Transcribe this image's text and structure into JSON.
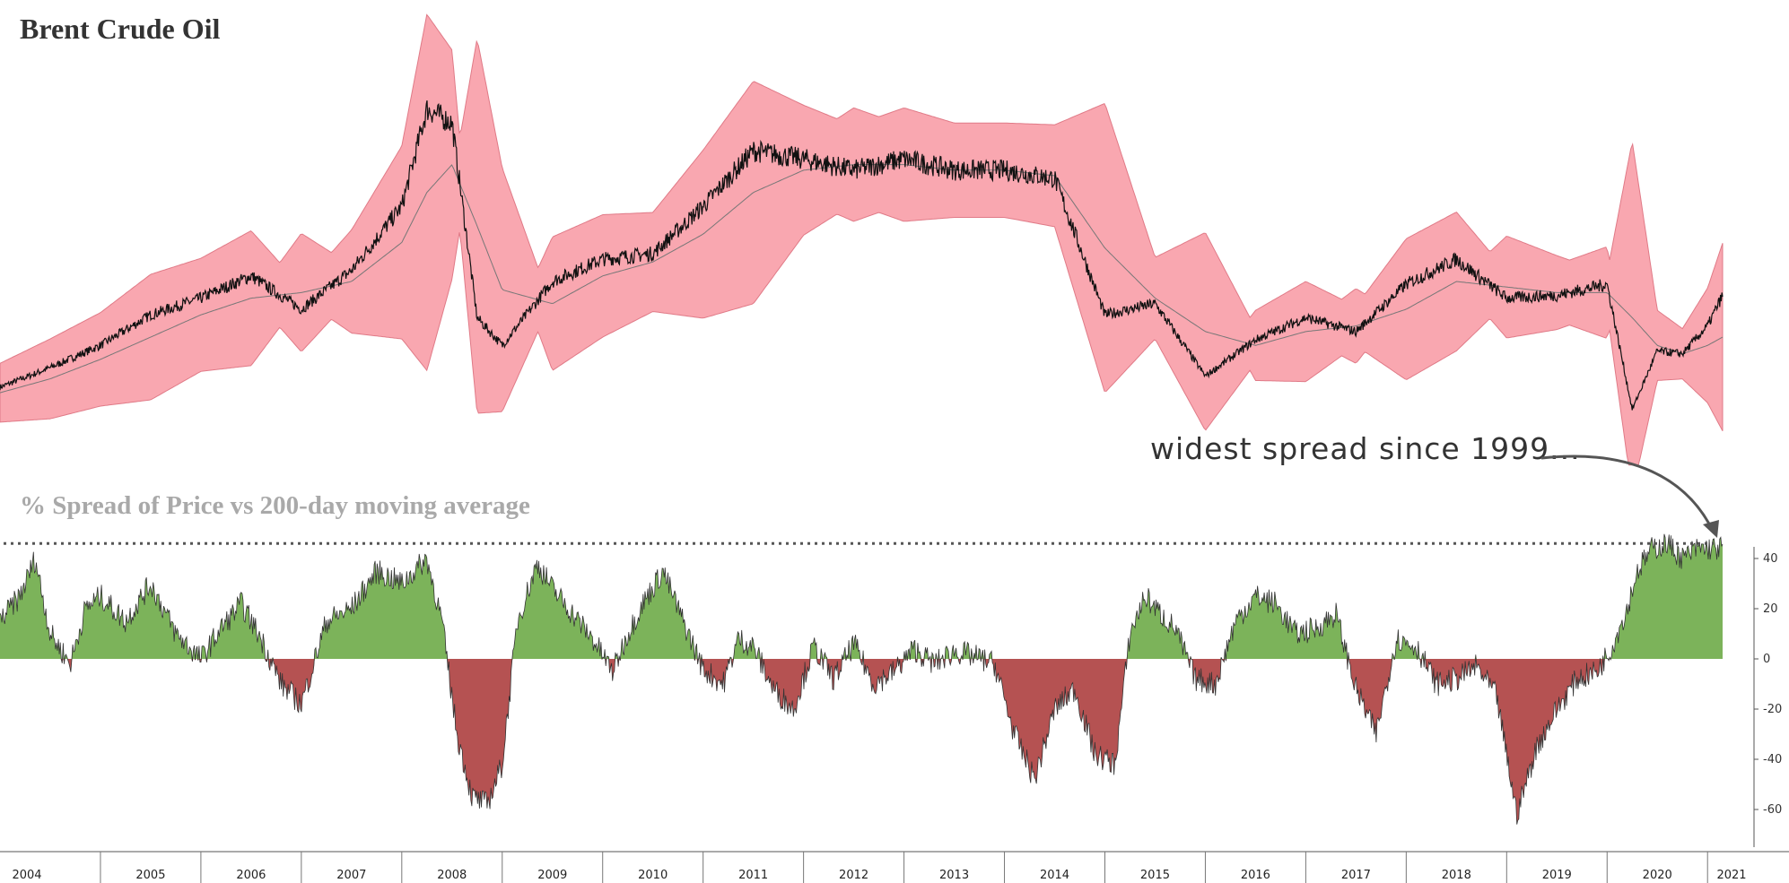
{
  "chart_data": [
    {
      "type": "line",
      "title": "Brent Crude Oil",
      "description_series": [
        "price",
        "200-day moving average",
        "band"
      ],
      "x": [
        2004.0,
        2004.5,
        2005.0,
        2005.5,
        2006.0,
        2006.5,
        2007.0,
        2007.5,
        2008.0,
        2008.25,
        2008.5,
        2008.75,
        2009.0,
        2009.5,
        2010.0,
        2010.5,
        2011.0,
        2011.5,
        2012.0,
        2012.5,
        2013.0,
        2013.5,
        2014.0,
        2014.5,
        2015.0,
        2015.5,
        2016.0,
        2016.5,
        2017.0,
        2017.5,
        2018.0,
        2018.5,
        2019.0,
        2019.5,
        2020.0,
        2020.25,
        2020.5,
        2020.75,
        2021.0,
        2021.15
      ],
      "series": [
        {
          "values": [
            30,
            37,
            45,
            56,
            62,
            70,
            58,
            72,
            95,
            130,
            125,
            55,
            45,
            68,
            76,
            78,
            95,
            115,
            112,
            108,
            112,
            108,
            108,
            105,
            56,
            60,
            34,
            47,
            55,
            50,
            67,
            76,
            62,
            63,
            67,
            22,
            43,
            42,
            52,
            63
          ]
        },
        {
          "values": [
            28,
            33,
            40,
            48,
            56,
            62,
            64,
            68,
            82,
            100,
            110,
            88,
            65,
            60,
            70,
            75,
            85,
            100,
            108,
            110,
            110,
            108,
            108,
            106,
            80,
            62,
            50,
            45,
            50,
            52,
            58,
            68,
            66,
            64,
            64,
            55,
            45,
            42,
            45,
            48
          ]
        }
      ]
    },
    {
      "type": "area",
      "title": "% Spread of Price vs 200-day moving average",
      "x": [
        2004.0,
        2004.2,
        2004.35,
        2004.5,
        2004.7,
        2004.85,
        2005.0,
        2005.25,
        2005.5,
        2005.75,
        2006.0,
        2006.2,
        2006.4,
        2006.6,
        2006.8,
        2007.0,
        2007.25,
        2007.5,
        2007.75,
        2008.0,
        2008.25,
        2008.4,
        2008.55,
        2008.7,
        2008.85,
        2009.0,
        2009.15,
        2009.35,
        2009.5,
        2009.7,
        2009.9,
        2010.1,
        2010.25,
        2010.4,
        2010.6,
        2010.8,
        2011.0,
        2011.2,
        2011.35,
        2011.5,
        2011.7,
        2011.9,
        2012.1,
        2012.3,
        2012.5,
        2012.7,
        2012.9,
        2013.1,
        2013.3,
        2013.5,
        2013.7,
        2013.9,
        2014.1,
        2014.3,
        2014.5,
        2014.7,
        2014.9,
        2015.1,
        2015.25,
        2015.4,
        2015.55,
        2015.7,
        2015.9,
        2016.1,
        2016.3,
        2016.5,
        2016.7,
        2016.9,
        2017.1,
        2017.3,
        2017.5,
        2017.7,
        2017.9,
        2018.1,
        2018.3,
        2018.5,
        2018.7,
        2018.9,
        2019.1,
        2019.3,
        2019.5,
        2019.7,
        2019.9,
        2020.05,
        2020.2,
        2020.3,
        2020.45,
        2020.6,
        2020.75,
        2020.9,
        2021.0,
        2021.1,
        2021.15
      ],
      "values": [
        15,
        25,
        40,
        10,
        -2,
        20,
        25,
        15,
        30,
        10,
        0,
        12,
        22,
        8,
        -10,
        -18,
        15,
        20,
        35,
        30,
        40,
        15,
        -30,
        -55,
        -58,
        -42,
        15,
        38,
        28,
        18,
        8,
        -5,
        10,
        22,
        35,
        15,
        -4,
        -10,
        8,
        5,
        -12,
        -20,
        5,
        -8,
        6,
        -10,
        -5,
        4,
        -2,
        3,
        1,
        -2,
        -30,
        -48,
        -20,
        -12,
        -38,
        -42,
        10,
        25,
        18,
        12,
        -8,
        -10,
        15,
        25,
        22,
        10,
        12,
        18,
        -12,
        -30,
        8,
        5,
        -10,
        -8,
        -3,
        -15,
        -62,
        -35,
        -20,
        -8,
        -5,
        5,
        20,
        35,
        44,
        46,
        40,
        44,
        44,
        44,
        44
      ],
      "ylim": [
        -70,
        45
      ],
      "yticks": [
        "-60",
        "-40",
        "-20",
        "0",
        "20",
        "40"
      ]
    }
  ],
  "text": {
    "title": "Brent Crude Oil",
    "subtitle": "% Spread of Price vs 200-day moving average",
    "annotation": "widest spread since 1999..."
  },
  "x_axis_labels": [
    "2004",
    "2005",
    "2006",
    "2007",
    "2008",
    "2009",
    "2010",
    "2011",
    "2012",
    "2013",
    "2014",
    "2015",
    "2016",
    "2017",
    "2018",
    "2019",
    "2020",
    "2021"
  ],
  "colors": {
    "band": "#f9a7b0",
    "band_edge": "#e07a87",
    "price": "#111111",
    "ma": "#777777",
    "positive": "#7cb35a",
    "negative": "#b55252",
    "dotted": "#555555"
  }
}
